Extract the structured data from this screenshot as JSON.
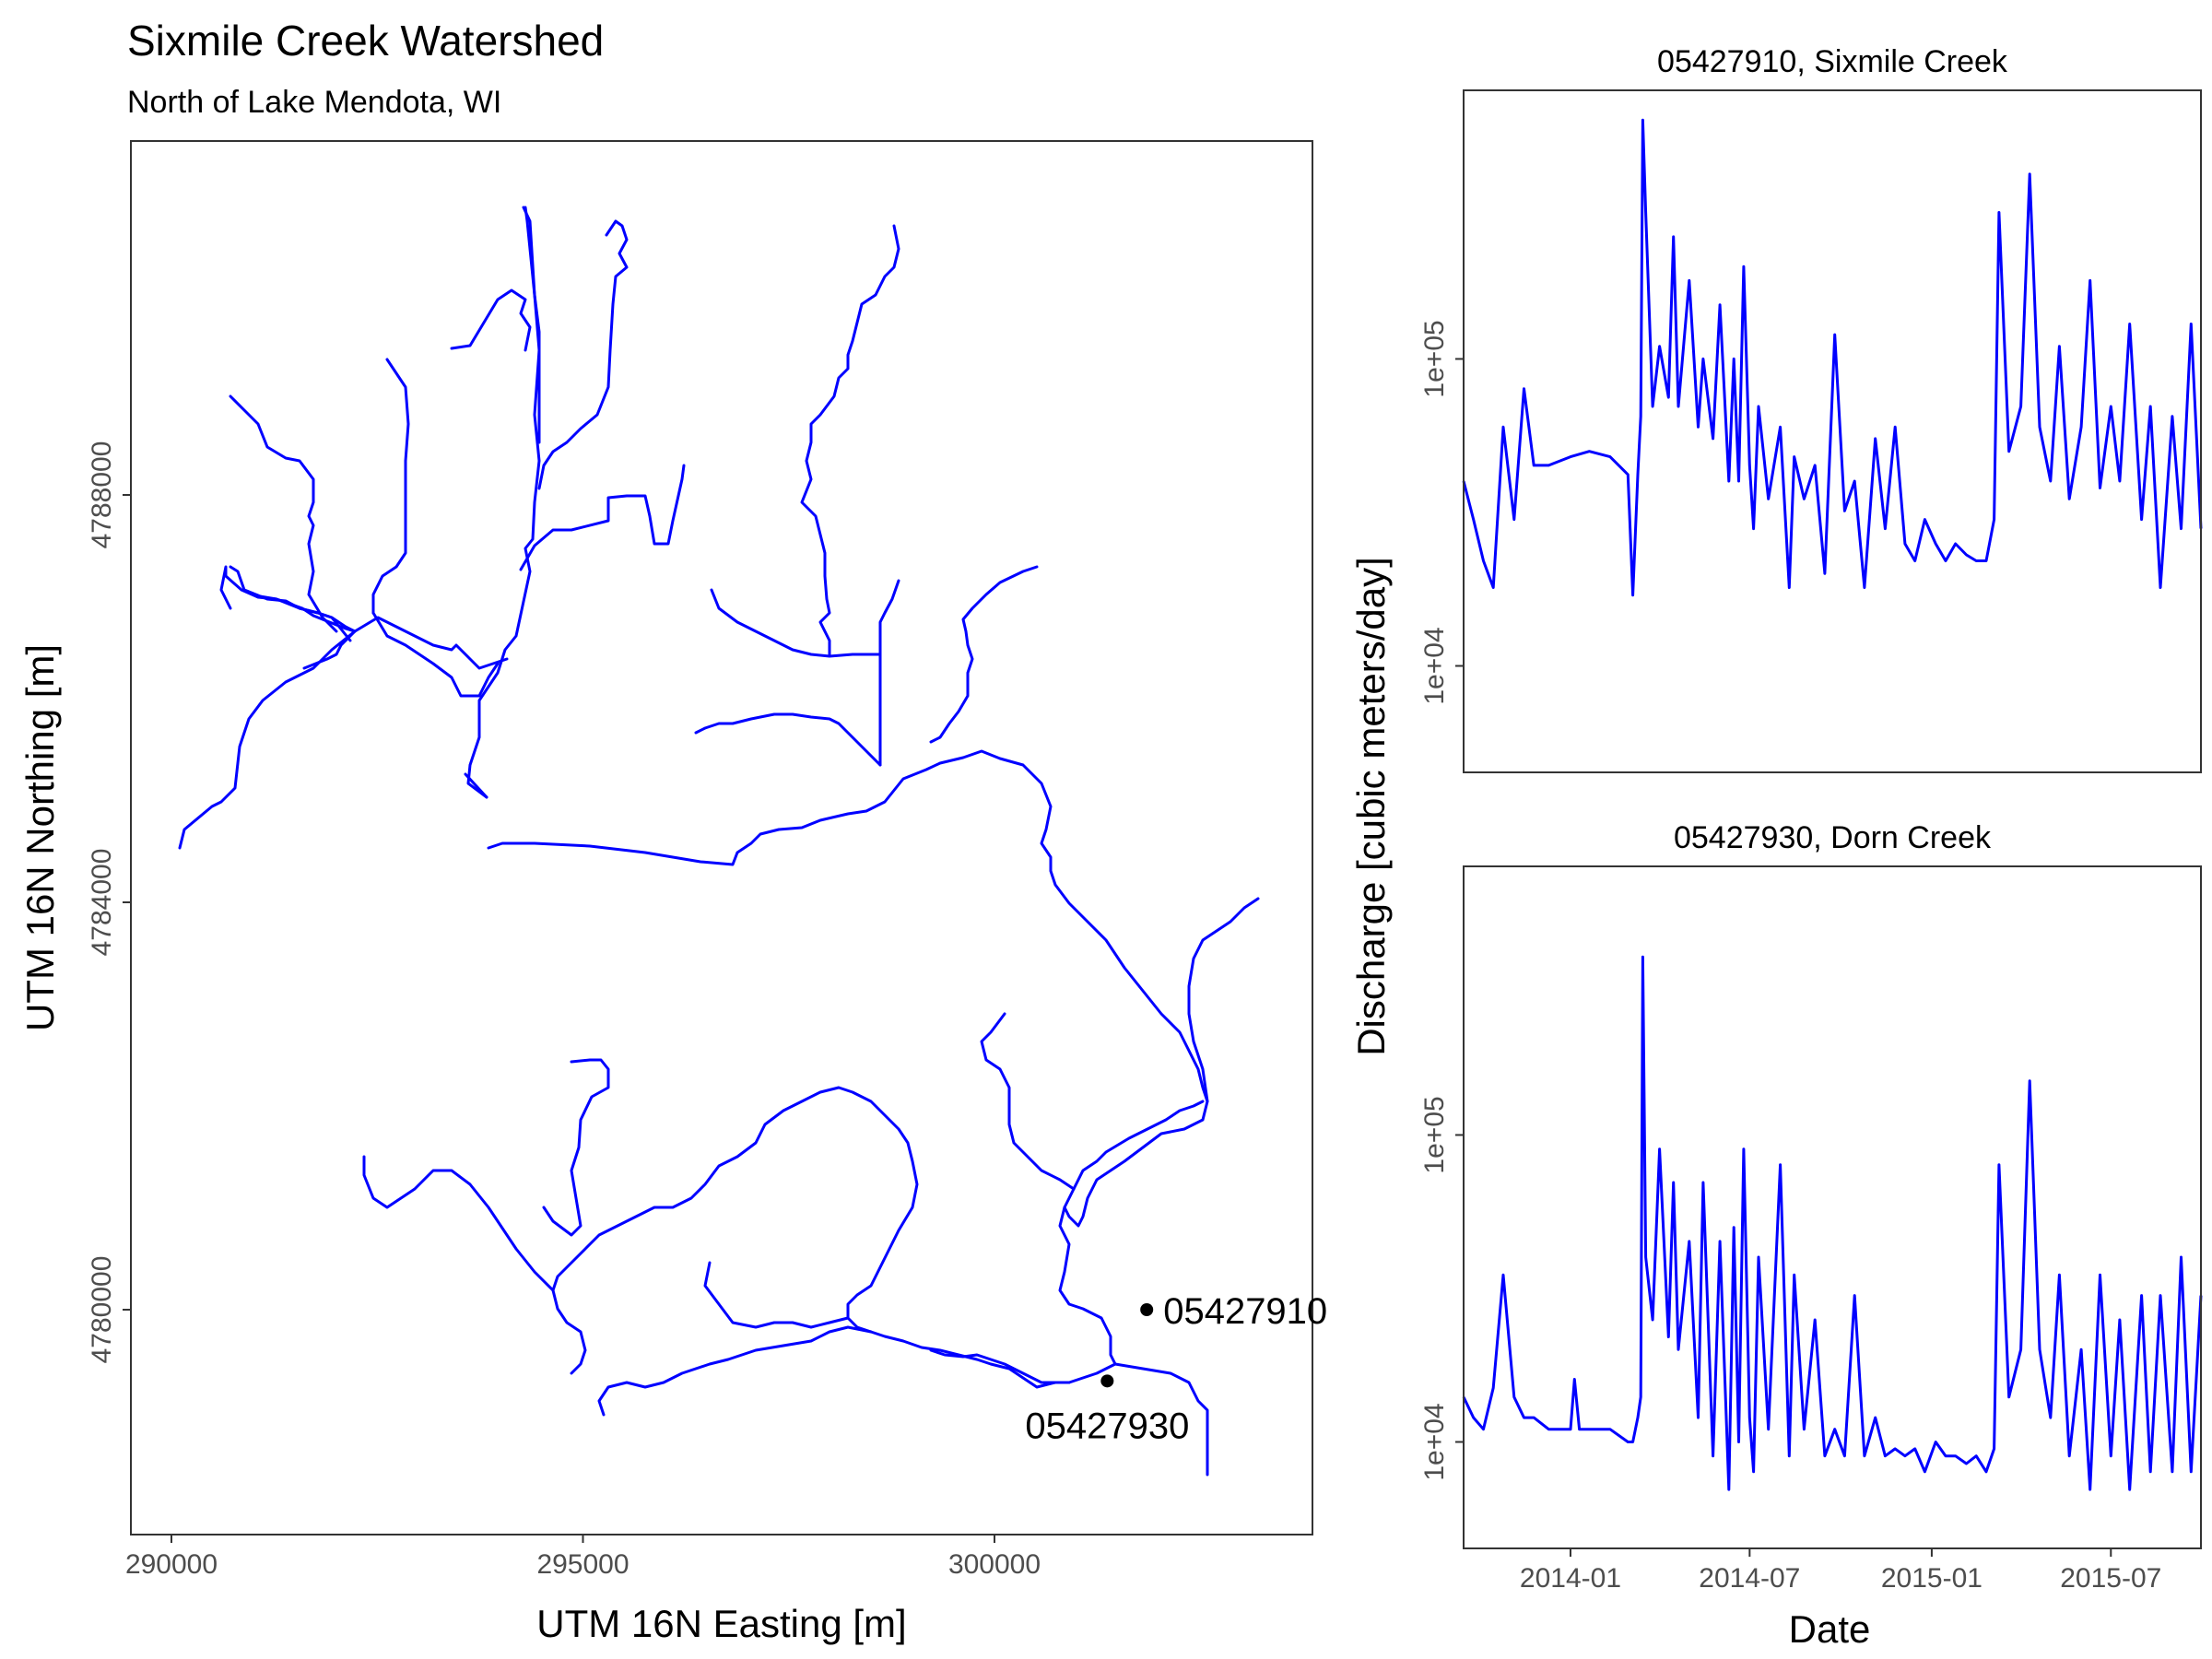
{
  "map": {
    "title": "Sixmile Creek Watershed",
    "subtitle": "North of Lake Mendota, WI",
    "xlabel": "UTM 16N Easting [m]",
    "ylabel": "UTM 16N Northing [m]",
    "xticks": [
      "290000",
      "295000",
      "300000"
    ],
    "yticks": [
      "4780000",
      "4784000",
      "4788000"
    ],
    "stream_color": "#0000ff",
    "gauges": [
      {
        "id": "05427910",
        "easting": 301850,
        "northing": 4780000
      },
      {
        "id": "05427930",
        "easting": 301370,
        "northing": 4779300
      }
    ]
  },
  "chart_data": [
    {
      "type": "line",
      "title": "05427910, Sixmile Creek",
      "ylabel": "Discharge [cubic meters/day]",
      "y_scale": "log",
      "ylim": [
        4500,
        750000
      ],
      "yticks": [
        "1e+04",
        "1e+05"
      ],
      "x_range": [
        "2013-09-15",
        "2015-09-30"
      ],
      "color": "#0000ff",
      "series": [
        {
          "x": [
            "2013-09-15",
            "2013-09-25",
            "2013-10-05",
            "2013-10-15",
            "2013-10-25",
            "2013-11-05",
            "2013-11-15",
            "2013-11-25",
            "2013-12-10",
            "2014-01-01",
            "2014-01-20",
            "2014-02-10",
            "2014-02-28",
            "2014-03-05",
            "2014-03-10",
            "2014-03-13",
            "2014-03-15",
            "2014-03-18",
            "2014-03-25",
            "2014-04-01",
            "2014-04-10",
            "2014-04-15",
            "2014-04-20",
            "2014-05-01",
            "2014-05-10",
            "2014-05-15",
            "2014-05-25",
            "2014-06-01",
            "2014-06-10",
            "2014-06-15",
            "2014-06-20",
            "2014-06-25",
            "2014-07-01",
            "2014-07-05",
            "2014-07-10",
            "2014-07-20",
            "2014-08-01",
            "2014-08-10",
            "2014-08-15",
            "2014-08-25",
            "2014-09-05",
            "2014-09-15",
            "2014-09-25",
            "2014-10-05",
            "2014-10-15",
            "2014-10-25",
            "2014-11-05",
            "2014-11-15",
            "2014-11-25",
            "2014-12-05",
            "2014-12-15",
            "2014-12-25",
            "2015-01-05",
            "2015-01-15",
            "2015-01-25",
            "2015-02-05",
            "2015-02-15",
            "2015-02-25",
            "2015-03-05",
            "2015-03-10",
            "2015-03-20",
            "2015-04-01",
            "2015-04-10",
            "2015-04-20",
            "2015-05-01",
            "2015-05-10",
            "2015-05-20",
            "2015-06-01",
            "2015-06-10",
            "2015-06-20",
            "2015-07-01",
            "2015-07-10",
            "2015-07-20",
            "2015-08-01",
            "2015-08-10",
            "2015-08-20",
            "2015-09-01",
            "2015-09-10",
            "2015-09-20",
            "2015-09-30"
          ],
          "y": [
            40000,
            30000,
            22000,
            18000,
            60000,
            30000,
            80000,
            45000,
            45000,
            48000,
            50000,
            48000,
            42000,
            17000,
            42000,
            65000,
            600000,
            300000,
            70000,
            110000,
            75000,
            250000,
            70000,
            180000,
            60000,
            100000,
            55000,
            150000,
            40000,
            100000,
            40000,
            200000,
            45000,
            28000,
            70000,
            35000,
            60000,
            18000,
            48000,
            35000,
            45000,
            20000,
            120000,
            32000,
            40000,
            18000,
            55000,
            28000,
            60000,
            25000,
            22000,
            30000,
            25000,
            22000,
            25000,
            23000,
            22000,
            22000,
            30000,
            300000,
            50000,
            70000,
            400000,
            60000,
            40000,
            110000,
            35000,
            60000,
            180000,
            38000,
            70000,
            40000,
            130000,
            30000,
            70000,
            18000,
            65000,
            28000,
            130000,
            28000
          ]
        }
      ]
    },
    {
      "type": "line",
      "title": "05427930, Dorn Creek",
      "xlabel": "Date",
      "ylabel": "Discharge [cubic meters/day]",
      "y_scale": "log",
      "ylim": [
        4500,
        750000
      ],
      "yticks": [
        "1e+04",
        "1e+05"
      ],
      "xticks": [
        "2014-01",
        "2014-07",
        "2015-01",
        "2015-07"
      ],
      "x_range": [
        "2013-09-15",
        "2015-09-30"
      ],
      "color": "#0000ff",
      "series": [
        {
          "x": [
            "2013-09-15",
            "2013-09-25",
            "2013-10-05",
            "2013-10-15",
            "2013-10-25",
            "2013-11-05",
            "2013-11-15",
            "2013-11-25",
            "2013-12-10",
            "2014-01-01",
            "2014-01-05",
            "2014-01-10",
            "2014-01-20",
            "2014-02-10",
            "2014-02-28",
            "2014-03-05",
            "2014-03-10",
            "2014-03-13",
            "2014-03-15",
            "2014-03-18",
            "2014-03-25",
            "2014-04-01",
            "2014-04-10",
            "2014-04-15",
            "2014-04-20",
            "2014-05-01",
            "2014-05-10",
            "2014-05-15",
            "2014-05-25",
            "2014-06-01",
            "2014-06-10",
            "2014-06-15",
            "2014-06-20",
            "2014-06-25",
            "2014-07-01",
            "2014-07-05",
            "2014-07-10",
            "2014-07-20",
            "2014-08-01",
            "2014-08-10",
            "2014-08-15",
            "2014-08-25",
            "2014-09-05",
            "2014-09-15",
            "2014-09-25",
            "2014-10-05",
            "2014-10-15",
            "2014-10-25",
            "2014-11-05",
            "2014-11-15",
            "2014-11-25",
            "2014-12-05",
            "2014-12-15",
            "2014-12-25",
            "2015-01-05",
            "2015-01-15",
            "2015-01-25",
            "2015-02-05",
            "2015-02-15",
            "2015-02-25",
            "2015-03-05",
            "2015-03-10",
            "2015-03-20",
            "2015-04-01",
            "2015-04-10",
            "2015-04-20",
            "2015-05-01",
            "2015-05-10",
            "2015-05-20",
            "2015-06-01",
            "2015-06-10",
            "2015-06-20",
            "2015-07-01",
            "2015-07-10",
            "2015-07-20",
            "2015-08-01",
            "2015-08-10",
            "2015-08-20",
            "2015-09-01",
            "2015-09-10",
            "2015-09-20",
            "2015-09-30"
          ],
          "y": [
            14000,
            12000,
            11000,
            15000,
            35000,
            14000,
            12000,
            12000,
            11000,
            11000,
            16000,
            11000,
            11000,
            11000,
            10000,
            10000,
            12000,
            14000,
            380000,
            40000,
            25000,
            90000,
            22000,
            70000,
            20000,
            45000,
            12000,
            70000,
            9000,
            45000,
            7000,
            50000,
            10000,
            90000,
            12000,
            8000,
            40000,
            11000,
            80000,
            9000,
            35000,
            11000,
            25000,
            9000,
            11000,
            9000,
            30000,
            9000,
            12000,
            9000,
            9500,
            9000,
            9500,
            8000,
            10000,
            9000,
            9000,
            8500,
            9000,
            8000,
            9500,
            80000,
            14000,
            20000,
            150000,
            20000,
            12000,
            35000,
            9000,
            20000,
            7000,
            35000,
            9000,
            25000,
            7000,
            30000,
            8000,
            30000,
            8000,
            40000,
            8000,
            30000
          ]
        }
      ]
    }
  ]
}
